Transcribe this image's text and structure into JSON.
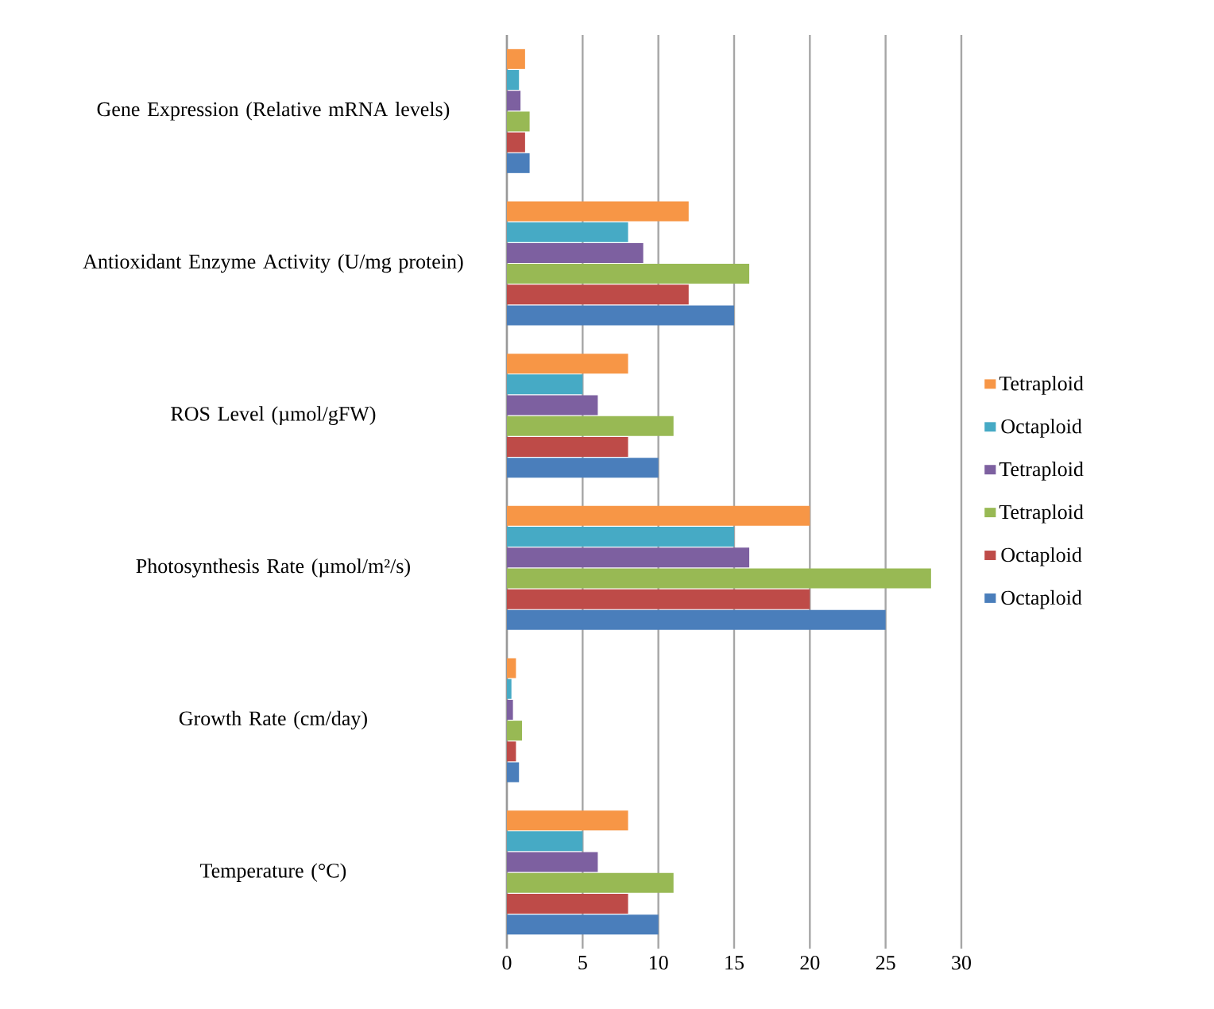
{
  "chart_data": {
    "type": "bar",
    "orientation": "horizontal",
    "categories": [
      "Gene Expression (Relative mRNA levels)",
      "Antioxidant Enzyme Activity (U/mg protein)",
      "ROS Level (µmol/gFW)",
      "Photosynthesis Rate (µmol/m²/s)",
      "Growth Rate (cm/day)",
      "Temperature (°C)"
    ],
    "series": [
      {
        "name": "Octaploid",
        "color": "#4a7ebb",
        "values": [
          1.5,
          15,
          10,
          25,
          0.8,
          10
        ]
      },
      {
        "name": "Octaploid",
        "color": "#be4b48",
        "values": [
          1.2,
          12,
          8,
          20,
          0.6,
          8
        ]
      },
      {
        "name": "Tetraploid",
        "color": "#98b954",
        "values": [
          1.5,
          16,
          11,
          28,
          1.0,
          11
        ]
      },
      {
        "name": "Tetraploid",
        "color": "#7d60a0",
        "values": [
          0.9,
          9,
          6,
          16,
          0.4,
          6
        ]
      },
      {
        "name": "Octaploid",
        "color": "#46aac5",
        "values": [
          0.8,
          8,
          5,
          15,
          0.3,
          5
        ]
      },
      {
        "name": "Tetraploid",
        "color": "#f79646",
        "values": [
          1.2,
          12,
          8,
          20,
          0.6,
          8
        ]
      }
    ],
    "xlim": [
      0,
      30
    ],
    "xticks": [
      0,
      5,
      10,
      15,
      20,
      25,
      30
    ],
    "grid": "x",
    "legend": "right"
  }
}
